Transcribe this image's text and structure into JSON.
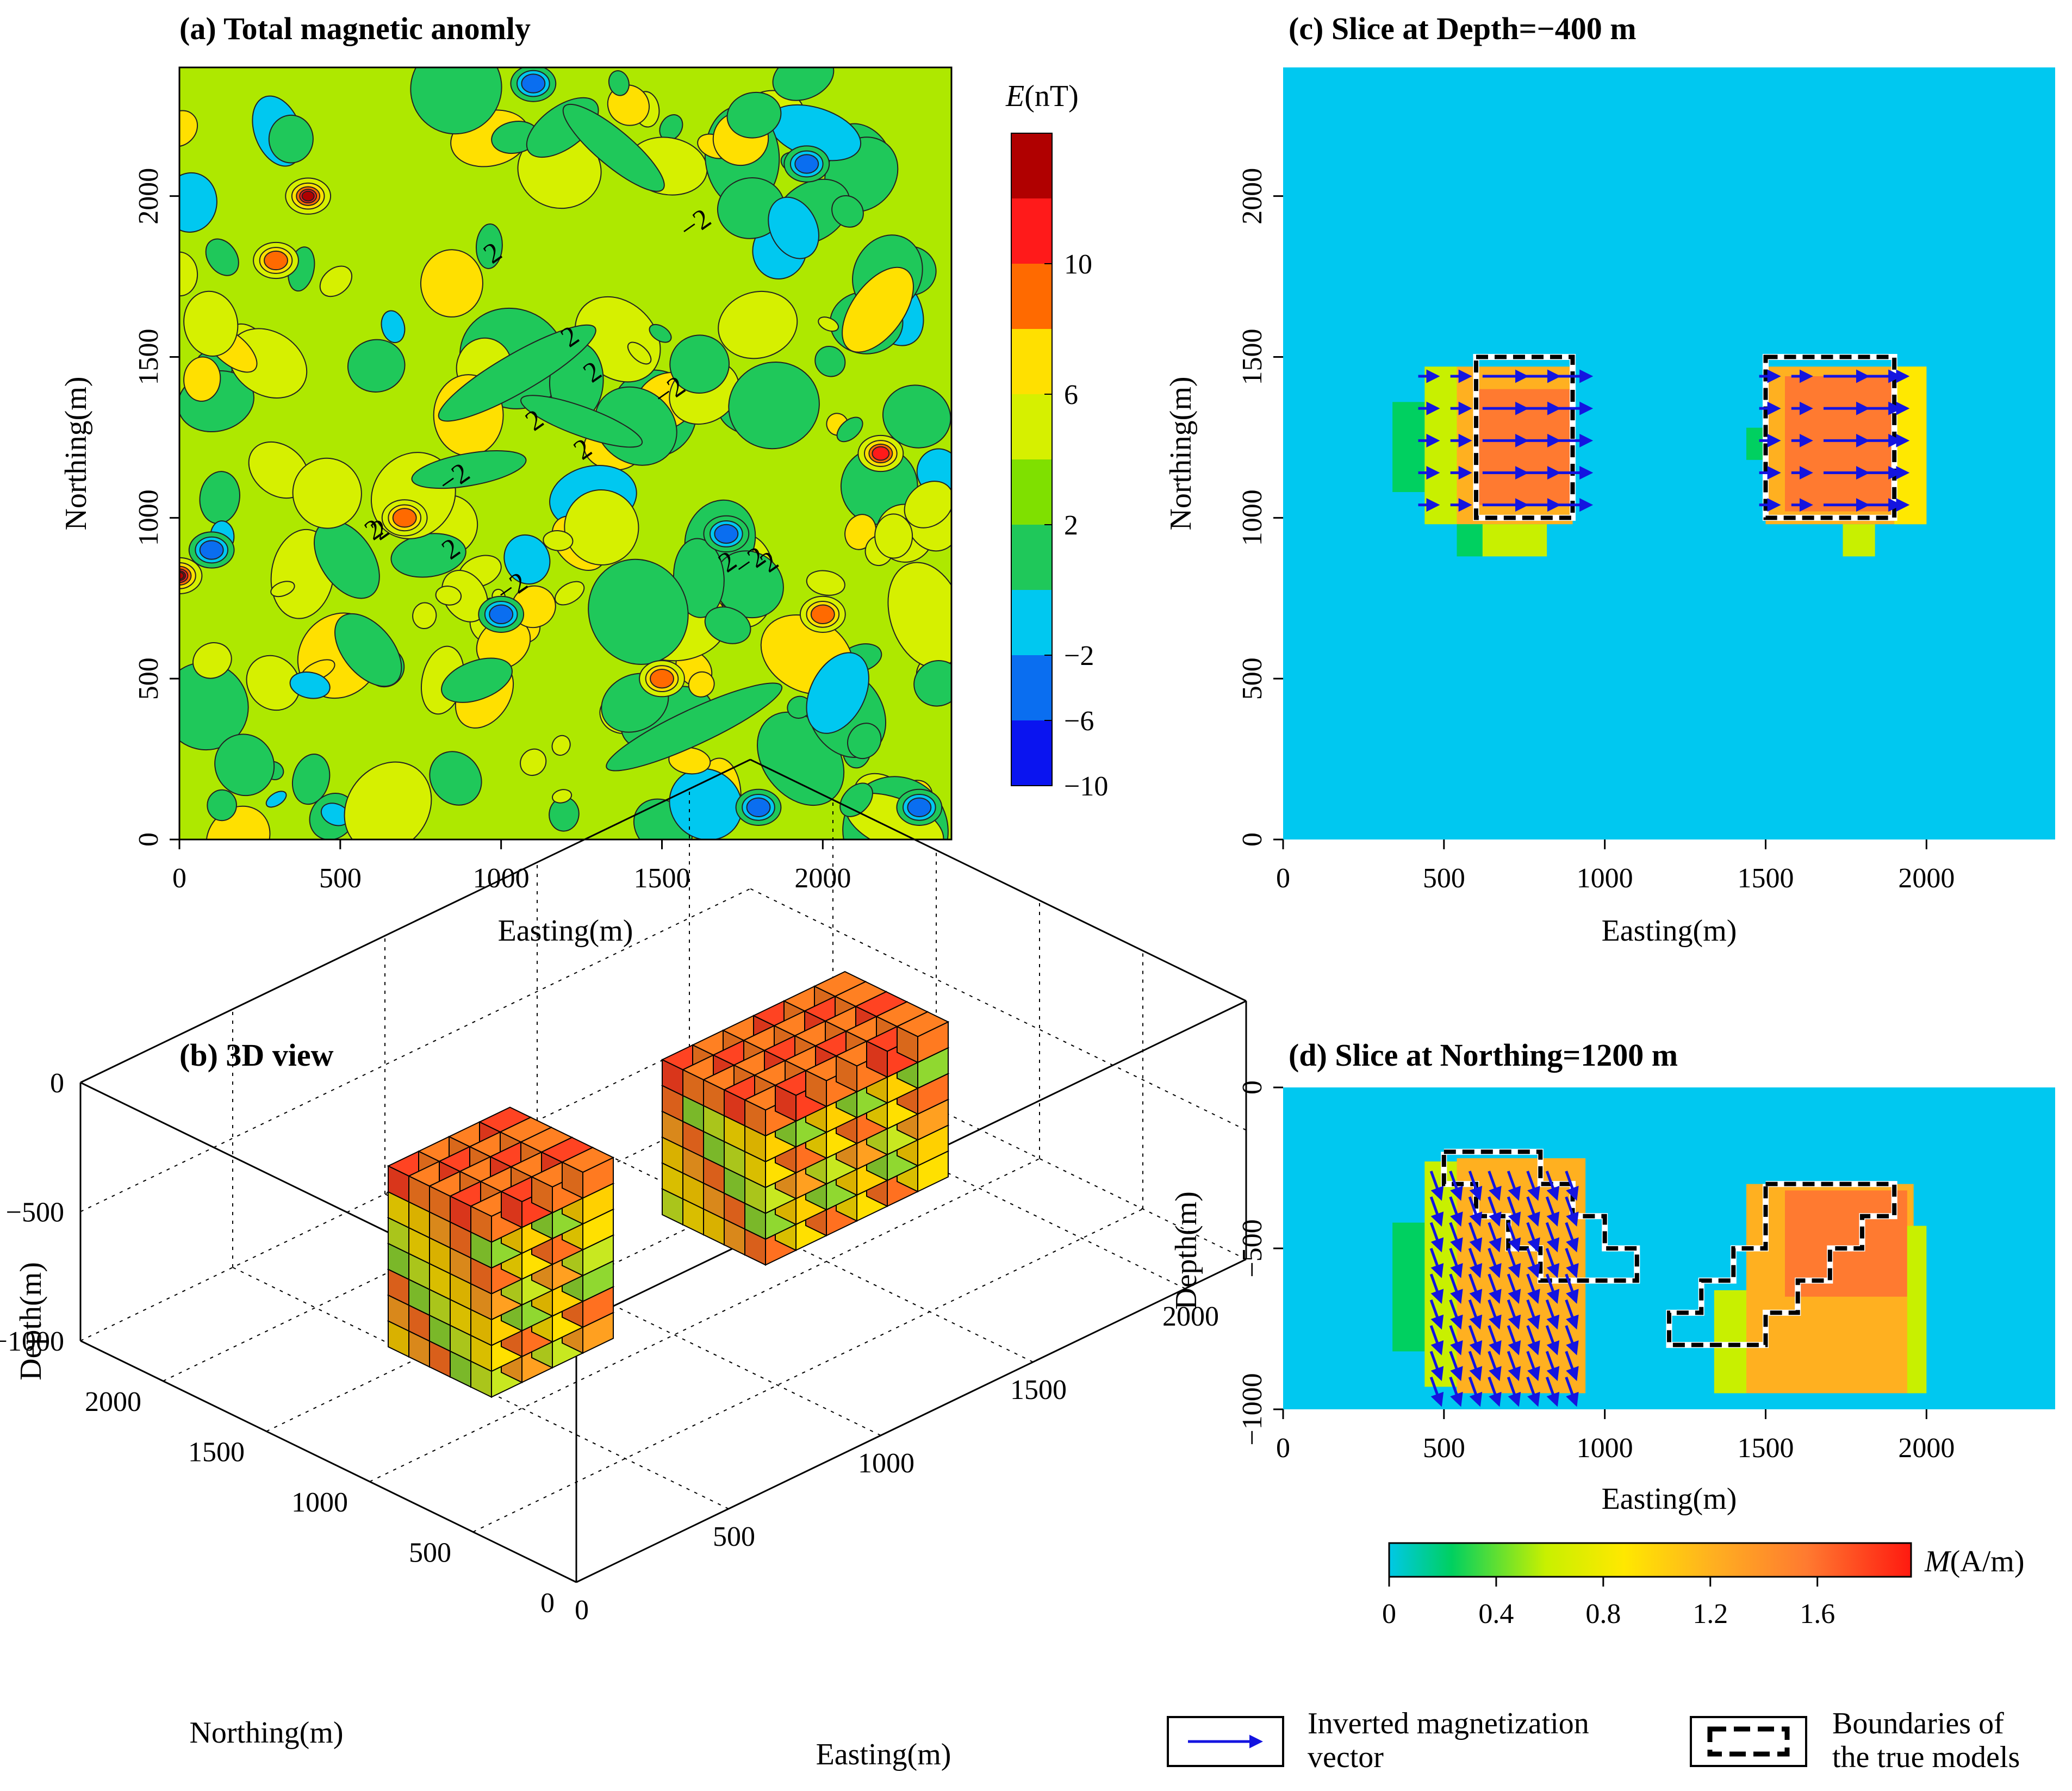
{
  "panels": {
    "a": {
      "title": "(a) Total magnetic anomly",
      "xlabel": "Easting(m)",
      "ylabel": "Northing(m)",
      "xticks": [
        "0",
        "500",
        "1000",
        "1500",
        "2000"
      ],
      "yticks": [
        "0",
        "500",
        "1000",
        "1500",
        "2000"
      ],
      "contour_labels": [
        "2",
        "2",
        "−2",
        "2",
        "2",
        "−2",
        "2",
        "2",
        "−2",
        "2",
        "2",
        "−2",
        "2",
        "−2",
        "2"
      ]
    },
    "b": {
      "title": "(b) 3D view",
      "zlabel": "Depth(m)",
      "northing_label": "Northing(m)",
      "easting_label": "Easting(m)",
      "zticks": [
        "0",
        "−500",
        "−1000"
      ],
      "northing_ticks": [
        "0",
        "500",
        "1000",
        "1500",
        "2000"
      ],
      "easting_ticks": [
        "0",
        "500",
        "1000",
        "1500",
        "2000"
      ]
    },
    "c": {
      "title": "(c) Slice at Depth=−400 m",
      "xlabel": "Easting(m)",
      "ylabel": "Northing(m)",
      "xticks": [
        "0",
        "500",
        "1000",
        "1500",
        "2000"
      ],
      "yticks": [
        "0",
        "500",
        "1000",
        "1500",
        "2000"
      ]
    },
    "d": {
      "title": "(d) Slice at Northing=1200 m",
      "xlabel": "Easting(m)",
      "ylabel": "Depth(m)",
      "xticks": [
        "0",
        "500",
        "1000",
        "1500",
        "2000"
      ],
      "yticks": [
        "0",
        "−500",
        "−1000"
      ]
    }
  },
  "colorbar_E": {
    "label_symbol": "E",
    "label_unit": "(nT)",
    "ticks": [
      "10",
      "6",
      "2",
      "−2",
      "−6",
      "−10"
    ],
    "colors": [
      "#b00000",
      "#ff1a1a",
      "#ff6a00",
      "#ffe000",
      "#d6f000",
      "#7fe000",
      "#1fc85a",
      "#00c8f0",
      "#0a6ef0",
      "#0a14f0"
    ]
  },
  "colorbar_M": {
    "label_symbol": "M",
    "label_unit": "(A/m)",
    "ticks": [
      "0",
      "0.4",
      "0.8",
      "1.2",
      "1.6"
    ],
    "colors": [
      "#00c8e6",
      "#00d060",
      "#c8f000",
      "#ffe800",
      "#ffb020",
      "#ff7a30",
      "#ff1a10"
    ]
  },
  "legend": {
    "arrow_label": [
      "Inverted magnetization",
      "vector"
    ],
    "box_label": [
      "Boundaries of",
      "the true models"
    ]
  },
  "chart_data": [
    {
      "type": "heatmap",
      "panel": "a",
      "title": "(a) Total magnetic anomly",
      "xlabel": "Easting(m)",
      "ylabel": "Northing(m)",
      "xlim": [
        0,
        2400
      ],
      "ylim": [
        0,
        2400
      ],
      "contour_levels_nT": [
        -10,
        -6,
        -2,
        2,
        6,
        10
      ],
      "colorbar_range_nT": [
        -10,
        14
      ],
      "anomaly_peaks": [
        {
          "x": 400,
          "y": 2000,
          "value": 10
        },
        {
          "x": 0,
          "y": 820,
          "value": 12
        },
        {
          "x": 2180,
          "y": 1200,
          "value": 8
        },
        {
          "x": 2000,
          "y": 700,
          "value": 7
        },
        {
          "x": 1500,
          "y": 500,
          "value": 6
        },
        {
          "x": 300,
          "y": 1800,
          "value": 6
        },
        {
          "x": 700,
          "y": 1000,
          "value": 6
        },
        {
          "x": 100,
          "y": 900,
          "value": -6
        },
        {
          "x": 1100,
          "y": 2350,
          "value": -6
        },
        {
          "x": 1950,
          "y": 2100,
          "value": -6
        },
        {
          "x": 1700,
          "y": 950,
          "value": -6
        },
        {
          "x": 2300,
          "y": 100,
          "value": -6
        },
        {
          "x": 1800,
          "y": 100,
          "value": -6
        },
        {
          "x": 1000,
          "y": 700,
          "value": -6
        }
      ]
    },
    {
      "type": "heatmap",
      "panel": "c",
      "title": "(c) Slice at Depth=−400 m",
      "xlabel": "Easting(m)",
      "ylabel": "Northing(m)",
      "xlim": [
        0,
        2400
      ],
      "ylim": [
        0,
        2400
      ],
      "value_unit": "A/m",
      "cells": [
        {
          "x0": 340,
          "x1": 440,
          "y0": 1080,
          "y1": 1360,
          "value": 0.15
        },
        {
          "x0": 440,
          "x1": 540,
          "y0": 980,
          "y1": 1470,
          "value": 0.65
        },
        {
          "x0": 540,
          "x1": 900,
          "y0": 980,
          "y1": 1470,
          "value": 1.3
        },
        {
          "x0": 600,
          "x1": 900,
          "y0": 1040,
          "y1": 1400,
          "value": 1.45
        },
        {
          "x0": 540,
          "x1": 620,
          "y0": 880,
          "y1": 980,
          "value": 0.35
        },
        {
          "x0": 620,
          "x1": 820,
          "y0": 880,
          "y1": 980,
          "value": 0.5
        },
        {
          "x0": 1440,
          "x1": 1500,
          "y0": 1180,
          "y1": 1280,
          "value": 0.3
        },
        {
          "x0": 1500,
          "x1": 2000,
          "y0": 980,
          "y1": 1470,
          "value": 1.3
        },
        {
          "x0": 1560,
          "x1": 1900,
          "y0": 1020,
          "y1": 1440,
          "value": 1.5
        },
        {
          "x0": 1900,
          "x1": 2000,
          "y0": 980,
          "y1": 1470,
          "value": 0.9
        },
        {
          "x0": 1740,
          "x1": 1840,
          "y0": 880,
          "y1": 980,
          "value": 0.55
        }
      ],
      "true_model_boundaries": [
        {
          "x0": 600,
          "x1": 900,
          "y0": 1000,
          "y1": 1500
        },
        {
          "x0": 1500,
          "x1": 1900,
          "y0": 1000,
          "y1": 1500
        }
      ],
      "vector_direction": "east"
    },
    {
      "type": "heatmap",
      "panel": "d",
      "title": "(d) Slice at Northing=1200 m",
      "xlabel": "Easting(m)",
      "ylabel": "Depth(m)",
      "xlim": [
        0,
        2400
      ],
      "ylim": [
        -1000,
        0
      ],
      "value_unit": "A/m",
      "cells": [
        {
          "x0": 340,
          "x1": 440,
          "y0": -820,
          "y1": -420,
          "value": 0.15
        },
        {
          "x0": 440,
          "x1": 540,
          "y0": -930,
          "y1": -230,
          "value": 0.65
        },
        {
          "x0": 540,
          "x1": 940,
          "y0": -950,
          "y1": -220,
          "value": 1.3
        },
        {
          "x0": 1340,
          "x1": 1440,
          "y0": -950,
          "y1": -630,
          "value": 0.55
        },
        {
          "x0": 1440,
          "x1": 1960,
          "y0": -950,
          "y1": -300,
          "value": 1.3
        },
        {
          "x0": 1560,
          "x1": 1940,
          "y0": -650,
          "y1": -320,
          "value": 1.5
        },
        {
          "x0": 1940,
          "x1": 2000,
          "y0": -950,
          "y1": -430,
          "value": 0.6
        }
      ],
      "true_model_boundaries": "stepped dipping bodies",
      "vector_direction": "left body down-right, right body up-right"
    },
    {
      "type": "scatter",
      "panel": "b",
      "title": "(b) 3D view",
      "description_of_axes": {
        "zlim": [
          -1000,
          0
        ],
        "northing": [
          0,
          2000
        ],
        "easting": [
          0,
          2000
        ]
      }
    }
  ]
}
